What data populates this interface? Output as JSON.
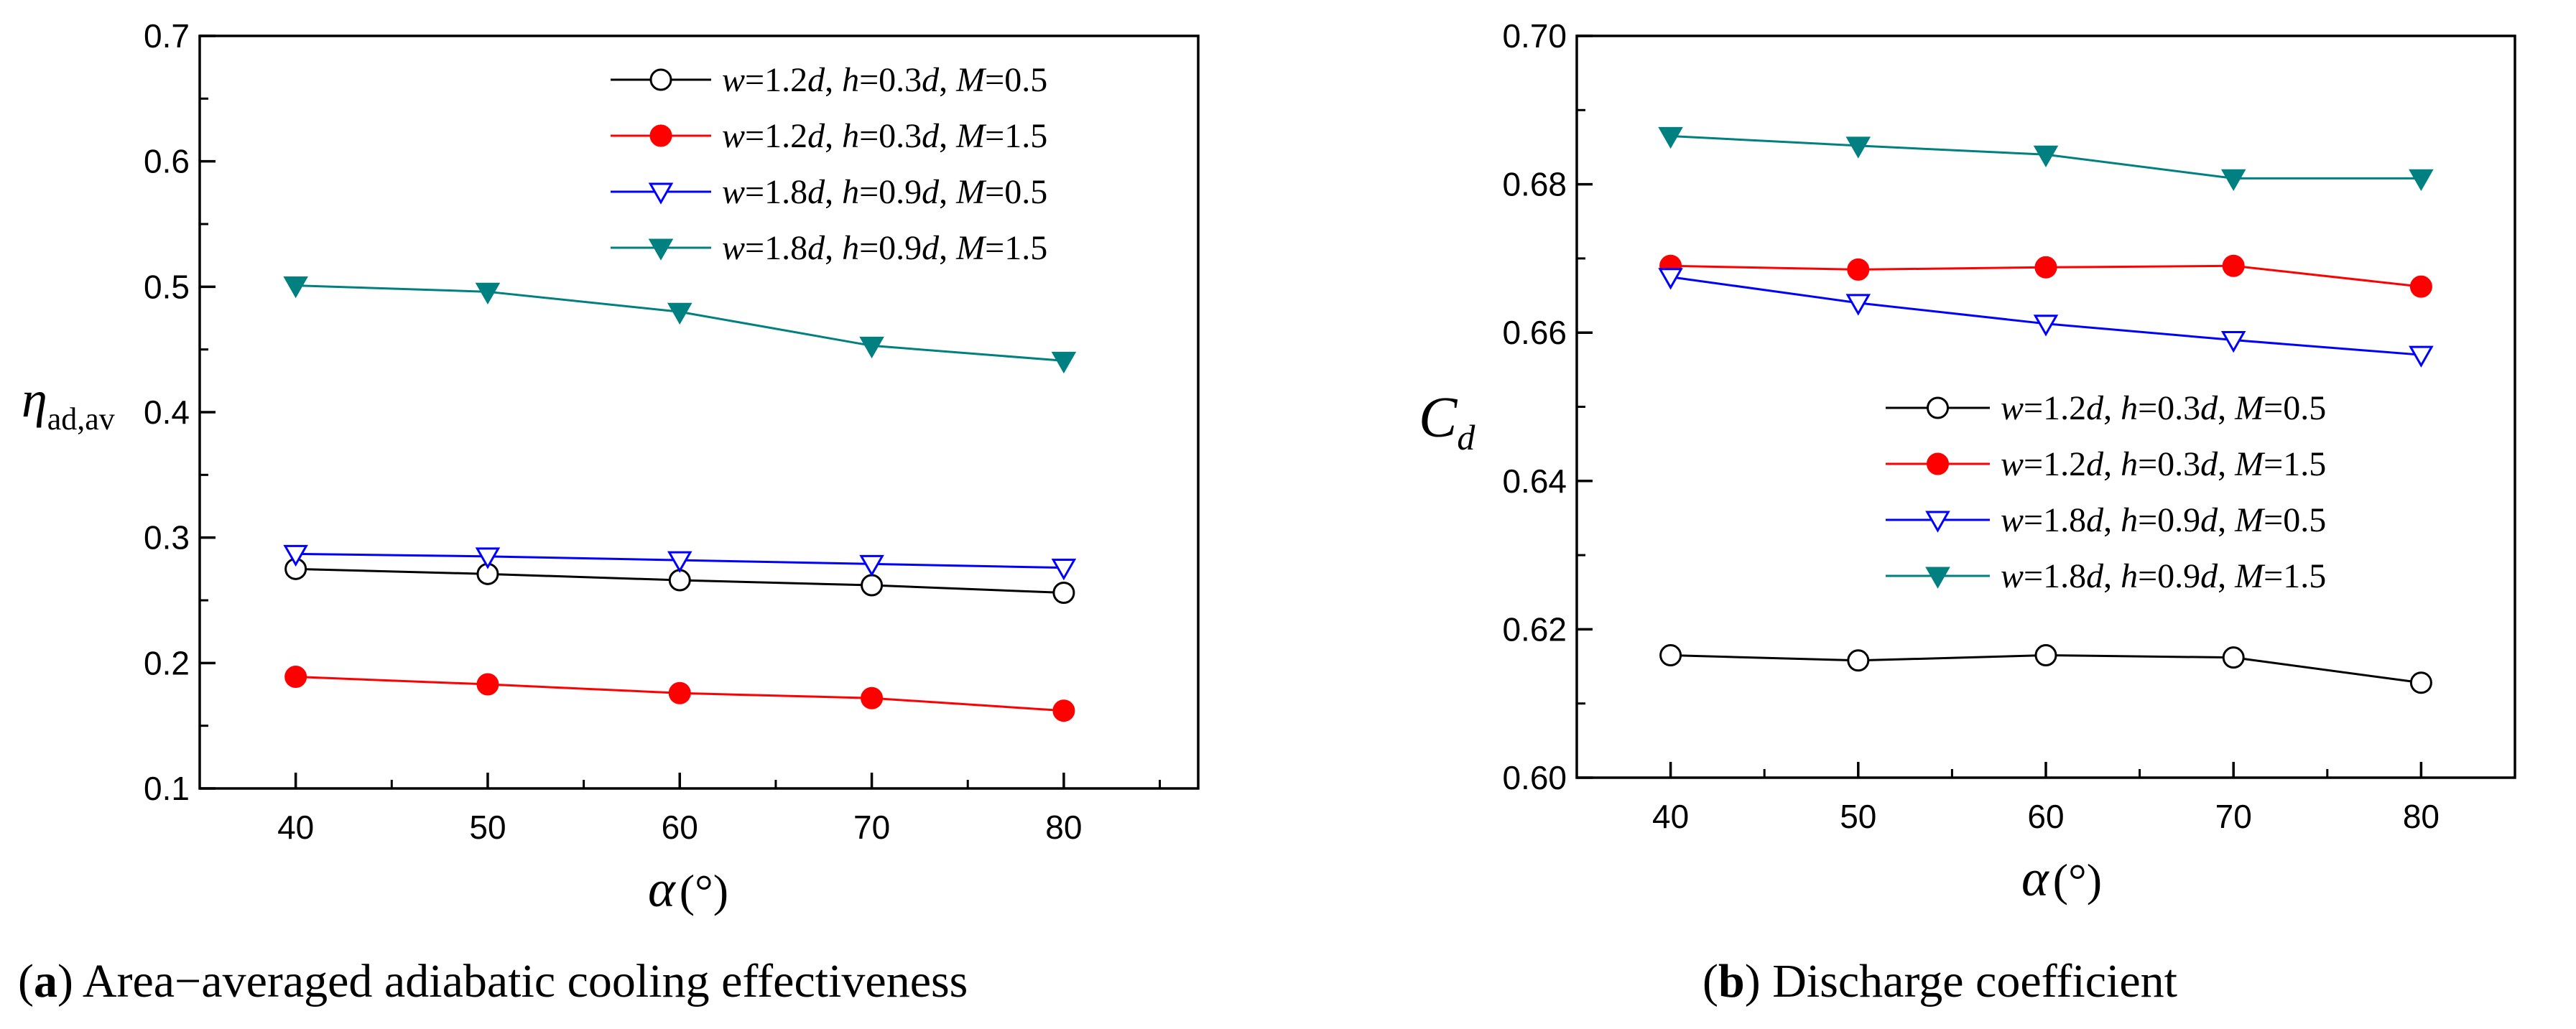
{
  "chart_data": [
    {
      "type": "line",
      "caption": {
        "label": "a",
        "text": "Area−averaged adiabatic cooling effectiveness"
      },
      "ylabel": {
        "symbol": "η",
        "subscript": "ad,av"
      },
      "xlabel": {
        "symbol": "α",
        "unit": "(°)"
      },
      "x": [
        40,
        50,
        60,
        70,
        80
      ],
      "xlim": [
        35,
        87
      ],
      "ylim": [
        0.1,
        0.7
      ],
      "xticks": [
        "40",
        "50",
        "60",
        "70",
        "80"
      ],
      "yticks": [
        "0.1",
        "0.2",
        "0.3",
        "0.4",
        "0.5",
        "0.6",
        "0.7"
      ],
      "legend_position": "top-right",
      "series": [
        {
          "name": "w=1.2d, h=0.3d, M=0.5",
          "parts": [
            {
              "t": "w",
              "i": true
            },
            {
              "t": "=1.2",
              "i": false
            },
            {
              "t": "d",
              "i": true
            },
            {
              "t": ", ",
              "i": false
            },
            {
              "t": "h",
              "i": true
            },
            {
              "t": "=0.3",
              "i": false
            },
            {
              "t": "d",
              "i": true
            },
            {
              "t": ", ",
              "i": false
            },
            {
              "t": "M",
              "i": true
            },
            {
              "t": "=0.5",
              "i": false
            }
          ],
          "color": "#000000",
          "marker": "circle-open",
          "values": [
            0.275,
            0.271,
            0.266,
            0.262,
            0.256
          ]
        },
        {
          "name": "w=1.2d, h=0.3d, M=1.5",
          "parts": [
            {
              "t": "w",
              "i": true
            },
            {
              "t": "=1.2",
              "i": false
            },
            {
              "t": "d",
              "i": true
            },
            {
              "t": ", ",
              "i": false
            },
            {
              "t": "h",
              "i": true
            },
            {
              "t": "=0.3",
              "i": false
            },
            {
              "t": "d",
              "i": true
            },
            {
              "t": ", ",
              "i": false
            },
            {
              "t": "M",
              "i": true
            },
            {
              "t": "=1.5",
              "i": false
            }
          ],
          "color": "#ff0000",
          "marker": "circle-filled",
          "values": [
            0.189,
            0.183,
            0.176,
            0.172,
            0.162
          ]
        },
        {
          "name": "w=1.8d, h=0.9d, M=0.5",
          "parts": [
            {
              "t": "w",
              "i": true
            },
            {
              "t": "=1.8",
              "i": false
            },
            {
              "t": "d",
              "i": true
            },
            {
              "t": ", ",
              "i": false
            },
            {
              "t": "h",
              "i": true
            },
            {
              "t": "=0.9",
              "i": false
            },
            {
              "t": "d",
              "i": true
            },
            {
              "t": ", ",
              "i": false
            },
            {
              "t": "M",
              "i": true
            },
            {
              "t": "=0.5",
              "i": false
            }
          ],
          "color": "#0000ff",
          "marker": "triangle-down-open",
          "values": [
            0.287,
            0.285,
            0.282,
            0.279,
            0.276
          ]
        },
        {
          "name": "w=1.8d, h=0.9d, M=1.5",
          "parts": [
            {
              "t": "w",
              "i": true
            },
            {
              "t": "=1.8",
              "i": false
            },
            {
              "t": "d",
              "i": true
            },
            {
              "t": ", ",
              "i": false
            },
            {
              "t": "h",
              "i": true
            },
            {
              "t": "=0.9",
              "i": false
            },
            {
              "t": "d",
              "i": true
            },
            {
              "t": ", ",
              "i": false
            },
            {
              "t": "M",
              "i": true
            },
            {
              "t": "=1.5",
              "i": false
            }
          ],
          "color": "#008080",
          "marker": "triangle-down-filled",
          "values": [
            0.501,
            0.496,
            0.48,
            0.453,
            0.441
          ]
        }
      ]
    },
    {
      "type": "line",
      "caption": {
        "label": "b",
        "text": "Discharge coefficient"
      },
      "ylabel": {
        "symbol": "C",
        "subscript": "d"
      },
      "xlabel": {
        "symbol": "α",
        "unit": "(°)"
      },
      "x": [
        40,
        50,
        60,
        70,
        80
      ],
      "xlim": [
        35,
        85
      ],
      "ylim": [
        0.6,
        0.7
      ],
      "xticks": [
        "40",
        "50",
        "60",
        "70",
        "80"
      ],
      "yticks": [
        "0.60",
        "0.62",
        "0.64",
        "0.66",
        "0.68",
        "0.70"
      ],
      "legend_position": "center-right",
      "series": [
        {
          "name": "w=1.2d, h=0.3d, M=0.5",
          "parts": [
            {
              "t": "w",
              "i": true
            },
            {
              "t": "=1.2",
              "i": false
            },
            {
              "t": "d",
              "i": true
            },
            {
              "t": ", ",
              "i": false
            },
            {
              "t": "h",
              "i": true
            },
            {
              "t": "=0.3",
              "i": false
            },
            {
              "t": "d",
              "i": true
            },
            {
              "t": ", ",
              "i": false
            },
            {
              "t": "M",
              "i": true
            },
            {
              "t": "=0.5",
              "i": false
            }
          ],
          "color": "#000000",
          "marker": "circle-open",
          "values": [
            0.6165,
            0.6158,
            0.6165,
            0.6162,
            0.6128
          ]
        },
        {
          "name": "w=1.2d, h=0.3d, M=1.5",
          "parts": [
            {
              "t": "w",
              "i": true
            },
            {
              "t": "=1.2",
              "i": false
            },
            {
              "t": "d",
              "i": true
            },
            {
              "t": ", ",
              "i": false
            },
            {
              "t": "h",
              "i": true
            },
            {
              "t": "=0.3",
              "i": false
            },
            {
              "t": "d",
              "i": true
            },
            {
              "t": ", ",
              "i": false
            },
            {
              "t": "M",
              "i": true
            },
            {
              "t": "=1.5",
              "i": false
            }
          ],
          "color": "#ff0000",
          "marker": "circle-filled",
          "values": [
            0.669,
            0.6685,
            0.6688,
            0.669,
            0.6662
          ]
        },
        {
          "name": "w=1.8d, h=0.9d, M=0.5",
          "parts": [
            {
              "t": "w",
              "i": true
            },
            {
              "t": "=1.8",
              "i": false
            },
            {
              "t": "d",
              "i": true
            },
            {
              "t": ", ",
              "i": false
            },
            {
              "t": "h",
              "i": true
            },
            {
              "t": "=0.9",
              "i": false
            },
            {
              "t": "d",
              "i": true
            },
            {
              "t": ", ",
              "i": false
            },
            {
              "t": "M",
              "i": true
            },
            {
              "t": "=0.5",
              "i": false
            }
          ],
          "color": "#0000ff",
          "marker": "triangle-down-open",
          "values": [
            0.6675,
            0.664,
            0.6612,
            0.659,
            0.657
          ]
        },
        {
          "name": "w=1.8d, h=0.9d, M=1.5",
          "parts": [
            {
              "t": "w",
              "i": true
            },
            {
              "t": "=1.8",
              "i": false
            },
            {
              "t": "d",
              "i": true
            },
            {
              "t": ", ",
              "i": false
            },
            {
              "t": "h",
              "i": true
            },
            {
              "t": "=0.9",
              "i": false
            },
            {
              "t": "d",
              "i": true
            },
            {
              "t": ", ",
              "i": false
            },
            {
              "t": "M",
              "i": true
            },
            {
              "t": "=1.5",
              "i": false
            }
          ],
          "color": "#008080",
          "marker": "triangle-down-filled",
          "values": [
            0.6865,
            0.6852,
            0.684,
            0.6808,
            0.6808
          ]
        }
      ]
    }
  ]
}
